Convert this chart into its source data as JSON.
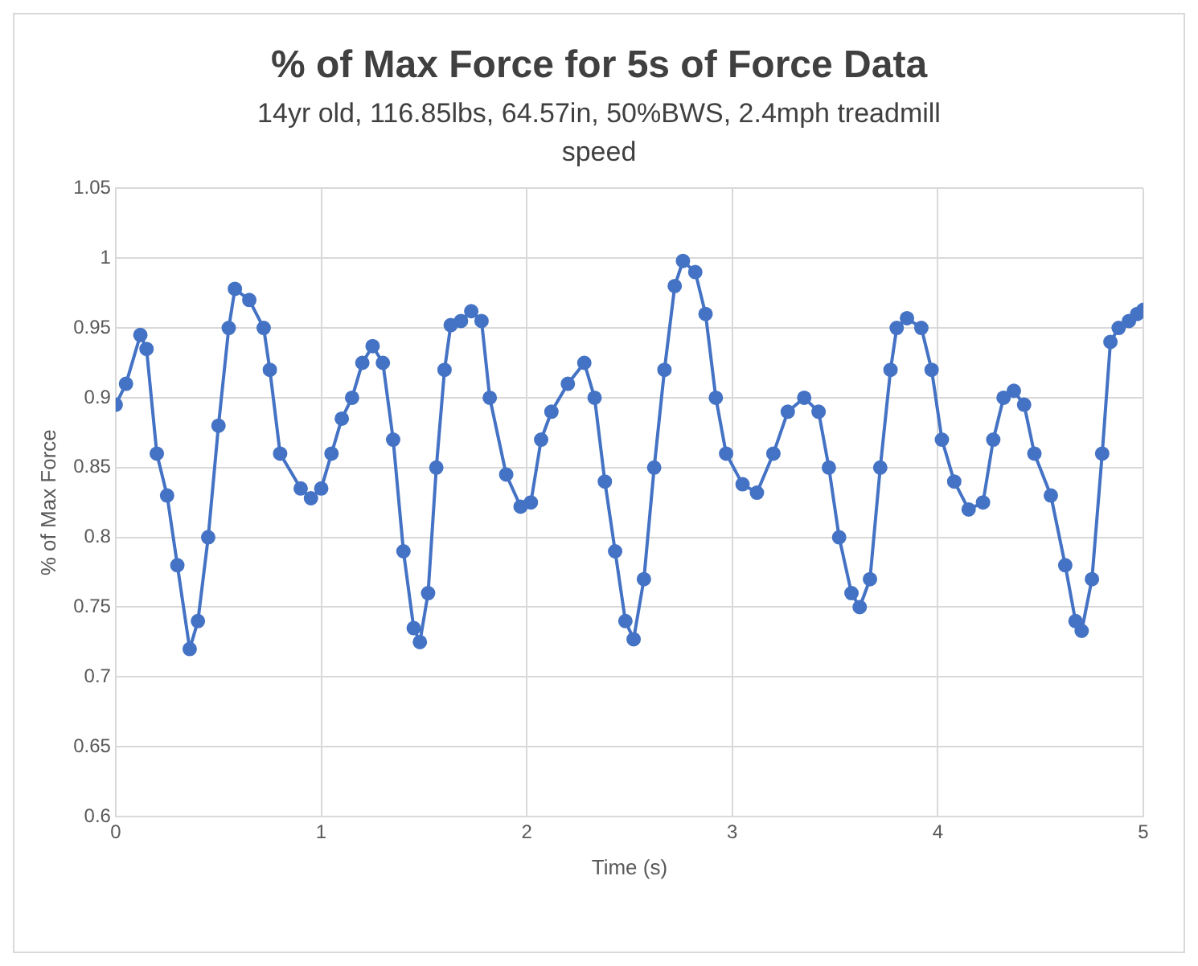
{
  "chart_data": {
    "type": "line",
    "title": "% of Max Force for 5s of Force Data",
    "subtitle": "14yr old, 116.85lbs, 64.57in, 50%BWS, 2.4mph treadmill speed",
    "xlabel": "Time (s)",
    "ylabel": "% of Max Force",
    "xlim": [
      0,
      5
    ],
    "xticks": [
      0,
      1,
      2,
      3,
      4,
      5
    ],
    "ylim": [
      0.6,
      1.05
    ],
    "yticks": [
      0.6,
      0.65,
      0.7,
      0.75,
      0.8,
      0.85,
      0.9,
      0.95,
      1,
      1.05
    ],
    "grid": true,
    "legend": false,
    "marker": "circle",
    "line_style": "solid",
    "series": [
      {
        "color": "#4472c4",
        "x": [
          0,
          0.05,
          0.12,
          0.15,
          0.2,
          0.25,
          0.3,
          0.36,
          0.4,
          0.45,
          0.5,
          0.55,
          0.58,
          0.65,
          0.72,
          0.75,
          0.8,
          0.9,
          0.95,
          1.0,
          1.05,
          1.1,
          1.15,
          1.2,
          1.25,
          1.3,
          1.35,
          1.4,
          1.45,
          1.48,
          1.52,
          1.56,
          1.6,
          1.63,
          1.68,
          1.73,
          1.78,
          1.82,
          1.9,
          1.97,
          2.02,
          2.07,
          2.12,
          2.2,
          2.28,
          2.33,
          2.38,
          2.43,
          2.48,
          2.52,
          2.57,
          2.62,
          2.67,
          2.72,
          2.76,
          2.82,
          2.87,
          2.92,
          2.97,
          3.05,
          3.12,
          3.2,
          3.27,
          3.35,
          3.42,
          3.47,
          3.52,
          3.58,
          3.62,
          3.67,
          3.72,
          3.77,
          3.8,
          3.85,
          3.92,
          3.97,
          4.02,
          4.08,
          4.15,
          4.22,
          4.27,
          4.32,
          4.37,
          4.42,
          4.47,
          4.55,
          4.62,
          4.67,
          4.7,
          4.75,
          4.8,
          4.84,
          4.88,
          4.93,
          4.97,
          5.0
        ],
        "values": [
          0.895,
          0.91,
          0.945,
          0.935,
          0.86,
          0.83,
          0.78,
          0.72,
          0.74,
          0.8,
          0.88,
          0.95,
          0.978,
          0.97,
          0.95,
          0.92,
          0.86,
          0.835,
          0.828,
          0.835,
          0.86,
          0.885,
          0.9,
          0.925,
          0.937,
          0.925,
          0.87,
          0.79,
          0.735,
          0.725,
          0.76,
          0.85,
          0.92,
          0.952,
          0.955,
          0.962,
          0.955,
          0.9,
          0.845,
          0.822,
          0.825,
          0.87,
          0.89,
          0.91,
          0.925,
          0.9,
          0.84,
          0.79,
          0.74,
          0.727,
          0.77,
          0.85,
          0.92,
          0.98,
          0.998,
          0.99,
          0.96,
          0.9,
          0.86,
          0.838,
          0.832,
          0.86,
          0.89,
          0.9,
          0.89,
          0.85,
          0.8,
          0.76,
          0.75,
          0.77,
          0.85,
          0.92,
          0.95,
          0.957,
          0.95,
          0.92,
          0.87,
          0.84,
          0.82,
          0.825,
          0.87,
          0.9,
          0.905,
          0.895,
          0.86,
          0.83,
          0.78,
          0.74,
          0.733,
          0.77,
          0.86,
          0.94,
          0.95,
          0.955,
          0.96,
          0.963
        ]
      }
    ]
  }
}
